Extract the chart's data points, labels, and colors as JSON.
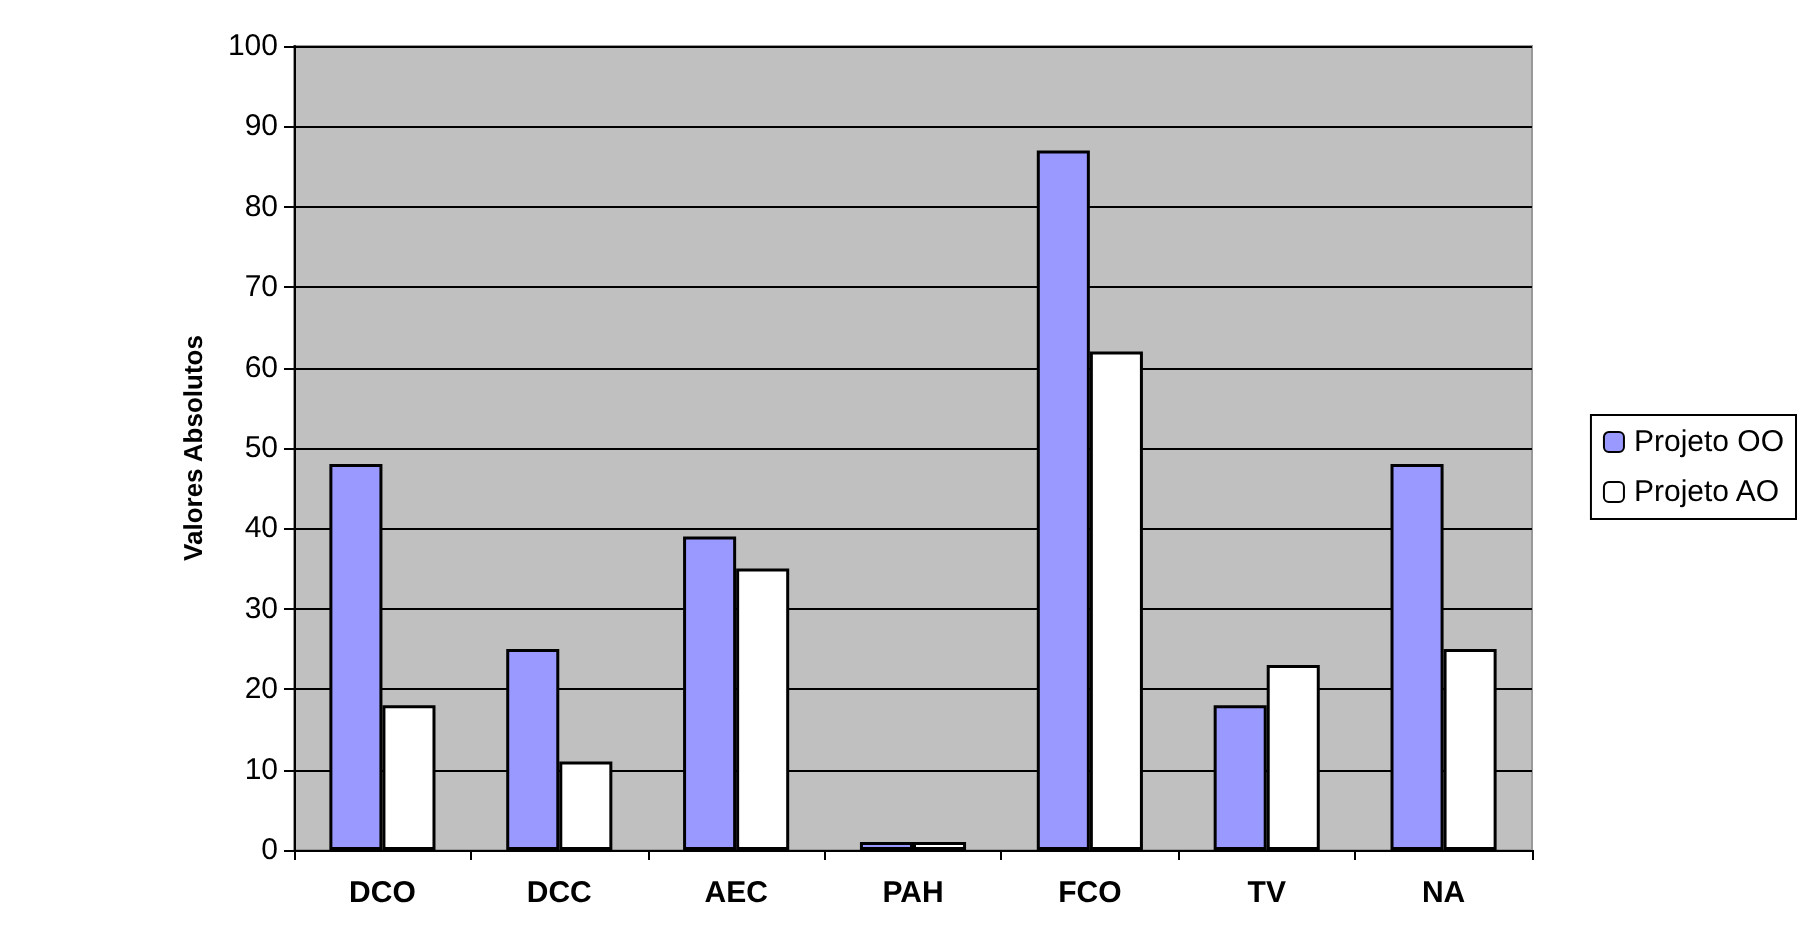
{
  "chart_data": {
    "type": "bar",
    "ylabel": "Valores Absolutos",
    "categories": [
      "DCO",
      "DCC",
      "AEC",
      "PAH",
      "FCO",
      "TV",
      "NA"
    ],
    "series": [
      {
        "name": "Projeto OO",
        "color": "#9999ff",
        "values": [
          48,
          25,
          39,
          1,
          87,
          18,
          48
        ]
      },
      {
        "name": "Projeto AO",
        "color": "#ffffff",
        "values": [
          18,
          11,
          35,
          1,
          62,
          23,
          25
        ]
      }
    ],
    "ylim": [
      0,
      100
    ],
    "yticks": [
      0,
      10,
      20,
      30,
      40,
      50,
      60,
      70,
      80,
      90,
      100
    ],
    "grid": "y",
    "legend": "right"
  }
}
